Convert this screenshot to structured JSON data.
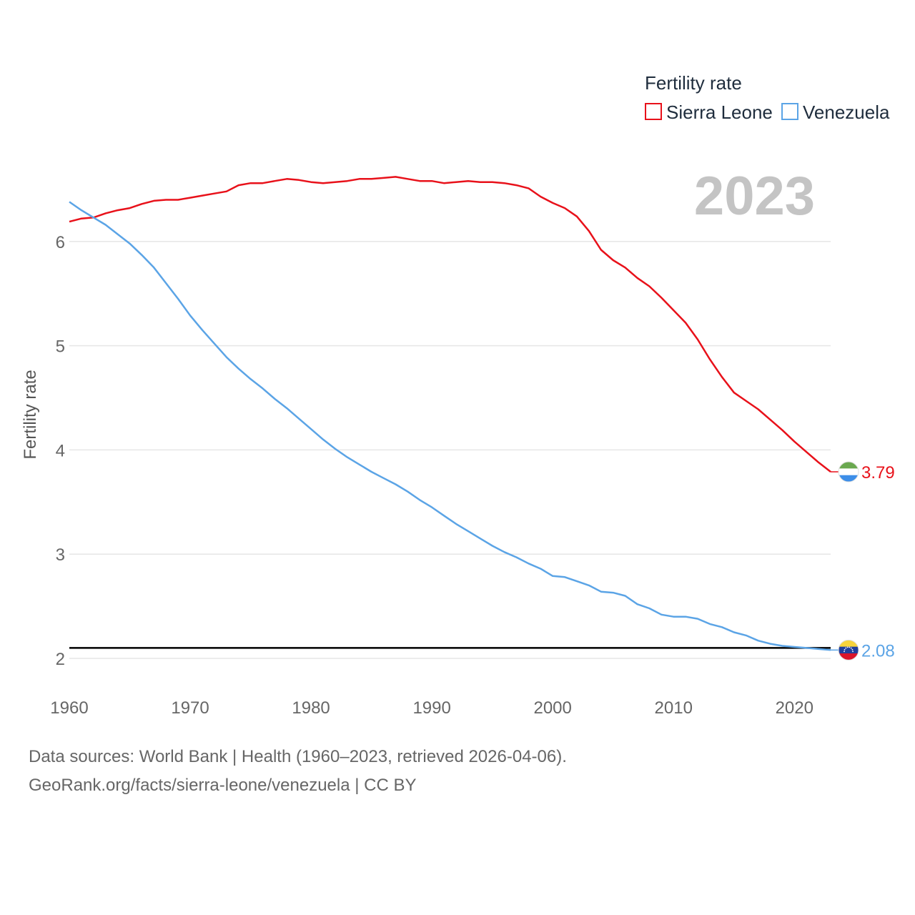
{
  "chart_data": {
    "type": "line",
    "legend_title": "Fertility rate",
    "ylabel": "Fertility rate",
    "xlabel": "",
    "year_label": "2023",
    "xlim": [
      1960,
      2023
    ],
    "ylim": [
      2,
      6.65
    ],
    "x_ticks": [
      1960,
      1970,
      1980,
      1990,
      2000,
      2010,
      2020
    ],
    "y_ticks": [
      2,
      3,
      4,
      5,
      6
    ],
    "reference_line": 2.1,
    "legend_position": "top-right",
    "series": [
      {
        "name": "Sierra Leone",
        "color": "#e8111a",
        "end_label": "3.79",
        "flag": "sierra-leone-flag",
        "x": [
          1960,
          1961,
          1962,
          1963,
          1964,
          1965,
          1966,
          1967,
          1968,
          1969,
          1970,
          1971,
          1972,
          1973,
          1974,
          1975,
          1976,
          1977,
          1978,
          1979,
          1980,
          1981,
          1982,
          1983,
          1984,
          1985,
          1986,
          1987,
          1988,
          1989,
          1990,
          1991,
          1992,
          1993,
          1994,
          1995,
          1996,
          1997,
          1998,
          1999,
          2000,
          2001,
          2002,
          2003,
          2004,
          2005,
          2006,
          2007,
          2008,
          2009,
          2010,
          2011,
          2012,
          2013,
          2014,
          2015,
          2016,
          2017,
          2018,
          2019,
          2020,
          2021,
          2022,
          2023
        ],
        "values": [
          6.19,
          6.22,
          6.23,
          6.27,
          6.3,
          6.32,
          6.36,
          6.39,
          6.4,
          6.4,
          6.42,
          6.44,
          6.46,
          6.48,
          6.54,
          6.56,
          6.56,
          6.58,
          6.6,
          6.59,
          6.57,
          6.56,
          6.57,
          6.58,
          6.6,
          6.6,
          6.61,
          6.62,
          6.6,
          6.58,
          6.58,
          6.56,
          6.57,
          6.58,
          6.57,
          6.57,
          6.56,
          6.54,
          6.51,
          6.43,
          6.37,
          6.32,
          6.24,
          6.1,
          5.92,
          5.82,
          5.75,
          5.65,
          5.57,
          5.46,
          5.34,
          5.22,
          5.06,
          4.87,
          4.7,
          4.55,
          4.47,
          4.39,
          4.29,
          4.19,
          4.08,
          3.98,
          3.88,
          3.79
        ]
      },
      {
        "name": "Venezuela",
        "color": "#5ba4e6",
        "end_label": "2.08",
        "flag": "venezuela-flag",
        "x": [
          1960,
          1961,
          1962,
          1963,
          1964,
          1965,
          1966,
          1967,
          1968,
          1969,
          1970,
          1971,
          1972,
          1973,
          1974,
          1975,
          1976,
          1977,
          1978,
          1979,
          1980,
          1981,
          1982,
          1983,
          1984,
          1985,
          1986,
          1987,
          1988,
          1989,
          1990,
          1991,
          1992,
          1993,
          1994,
          1995,
          1996,
          1997,
          1998,
          1999,
          2000,
          2001,
          2002,
          2003,
          2004,
          2005,
          2006,
          2007,
          2008,
          2009,
          2010,
          2011,
          2012,
          2013,
          2014,
          2015,
          2016,
          2017,
          2018,
          2019,
          2020,
          2021,
          2022,
          2023
        ],
        "values": [
          6.38,
          6.3,
          6.23,
          6.16,
          6.07,
          5.98,
          5.87,
          5.75,
          5.6,
          5.45,
          5.29,
          5.15,
          5.02,
          4.89,
          4.78,
          4.68,
          4.59,
          4.49,
          4.4,
          4.3,
          4.2,
          4.1,
          4.01,
          3.93,
          3.86,
          3.79,
          3.73,
          3.67,
          3.6,
          3.52,
          3.45,
          3.37,
          3.29,
          3.22,
          3.15,
          3.08,
          3.02,
          2.97,
          2.91,
          2.86,
          2.79,
          2.78,
          2.74,
          2.7,
          2.64,
          2.63,
          2.6,
          2.52,
          2.48,
          2.42,
          2.4,
          2.4,
          2.38,
          2.33,
          2.3,
          2.25,
          2.22,
          2.17,
          2.14,
          2.12,
          2.11,
          2.1,
          2.09,
          2.08
        ]
      }
    ]
  },
  "footer": {
    "line1": "Data sources: World Bank | Health (1960–2023, retrieved 2026-04-06).",
    "line2": "GeoRank.org/facts/sierra-leone/venezuela | CC BY"
  }
}
